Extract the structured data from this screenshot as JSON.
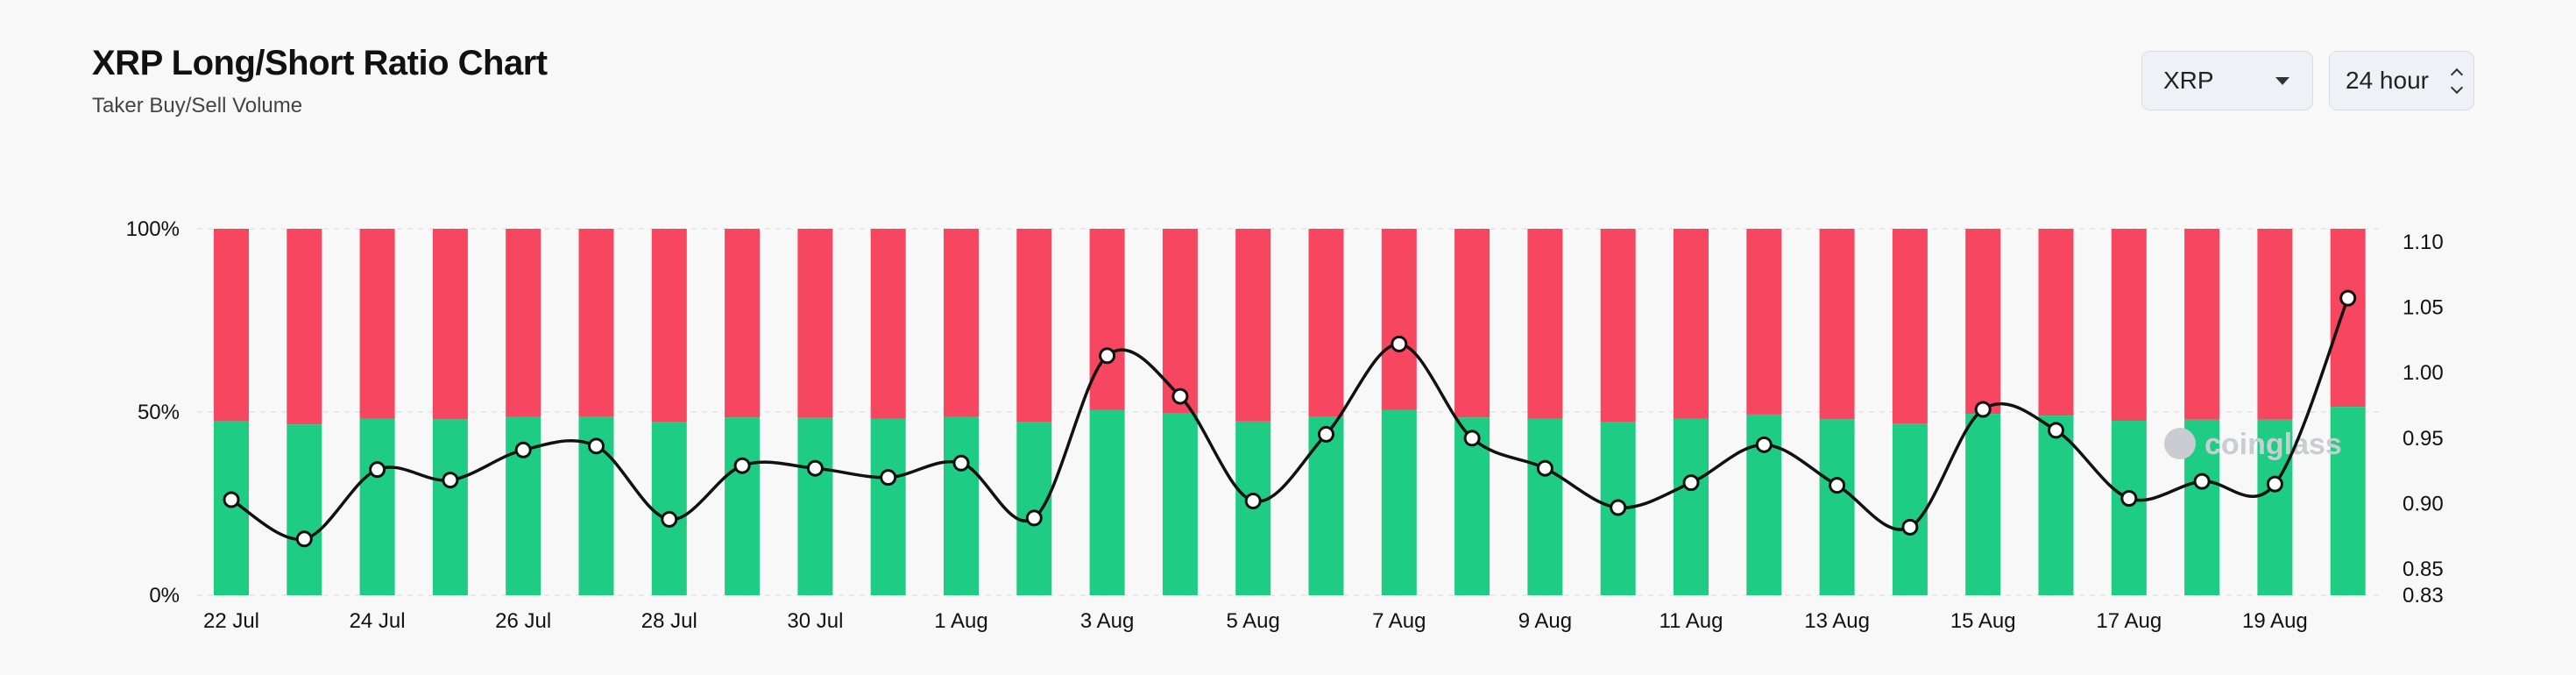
{
  "header": {
    "title": "XRP Long/Short Ratio Chart",
    "subtitle": "Taker Buy/Sell Volume"
  },
  "controls": {
    "coin": {
      "value": "XRP",
      "icon": "chevron-down-icon"
    },
    "period": {
      "value": "24 hour",
      "icon": "up-down-chevron-icon"
    }
  },
  "watermark": "coinglass",
  "colors": {
    "long": "#1ecc84",
    "short": "#f7465f",
    "line": "#111111"
  },
  "chart_data": {
    "type": "bar",
    "stacked": true,
    "x_tick_labels": [
      "22 Jul",
      "24 Jul",
      "26 Jul",
      "28 Jul",
      "30 Jul",
      "1 Aug",
      "3 Aug",
      "5 Aug",
      "7 Aug",
      "9 Aug",
      "11 Aug",
      "13 Aug",
      "15 Aug",
      "17 Aug",
      "19 Aug"
    ],
    "y_left_ticks": [
      "0%",
      "50%",
      "100%"
    ],
    "y_left_range": [
      0,
      100
    ],
    "y_right_ticks": [
      "0.83",
      "0.85",
      "0.90",
      "0.95",
      "1.00",
      "1.05",
      "1.10"
    ],
    "y_right_range": [
      0.83,
      1.11
    ],
    "grid": true,
    "categories": [
      "22 Jul",
      "23 Jul",
      "24 Jul",
      "25 Jul",
      "26 Jul",
      "27 Jul",
      "28 Jul",
      "29 Jul",
      "30 Jul",
      "31 Jul",
      "1 Aug",
      "2 Aug",
      "3 Aug",
      "4 Aug",
      "5 Aug",
      "6 Aug",
      "7 Aug",
      "8 Aug",
      "9 Aug",
      "10 Aug",
      "11 Aug",
      "12 Aug",
      "13 Aug",
      "14 Aug",
      "15 Aug",
      "16 Aug",
      "17 Aug",
      "18 Aug",
      "19 Aug",
      "20 Aug"
    ],
    "series": [
      {
        "values": [
          47.5,
          46.6,
          48.2,
          48.0,
          48.6,
          48.8,
          47.2,
          48.5,
          48.4,
          48.2,
          48.6,
          47.2,
          50.6,
          49.6,
          47.4,
          48.8,
          50.6,
          48.5,
          48.2,
          47.2,
          48.2,
          49.3,
          48.0,
          46.8,
          49.5,
          49.0,
          47.6,
          47.9,
          47.9,
          51.4
        ]
      },
      {
        "values": [
          52.5,
          53.4,
          51.8,
          52.0,
          51.4,
          51.2,
          52.8,
          51.5,
          51.6,
          51.8,
          51.4,
          52.8,
          49.4,
          50.4,
          52.6,
          51.2,
          49.4,
          51.5,
          51.8,
          52.8,
          51.8,
          50.7,
          52.0,
          53.2,
          50.5,
          51.0,
          52.4,
          52.1,
          52.1,
          48.6
        ]
      },
      {
        "values": [
          0.903,
          0.873,
          0.926,
          0.918,
          0.941,
          0.944,
          0.888,
          0.929,
          0.927,
          0.92,
          0.931,
          0.889,
          1.013,
          0.982,
          0.902,
          0.953,
          1.022,
          0.95,
          0.927,
          0.897,
          0.916,
          0.945,
          0.914,
          0.882,
          0.972,
          0.956,
          0.904,
          0.917,
          0.915,
          1.057
        ]
      }
    ]
  }
}
